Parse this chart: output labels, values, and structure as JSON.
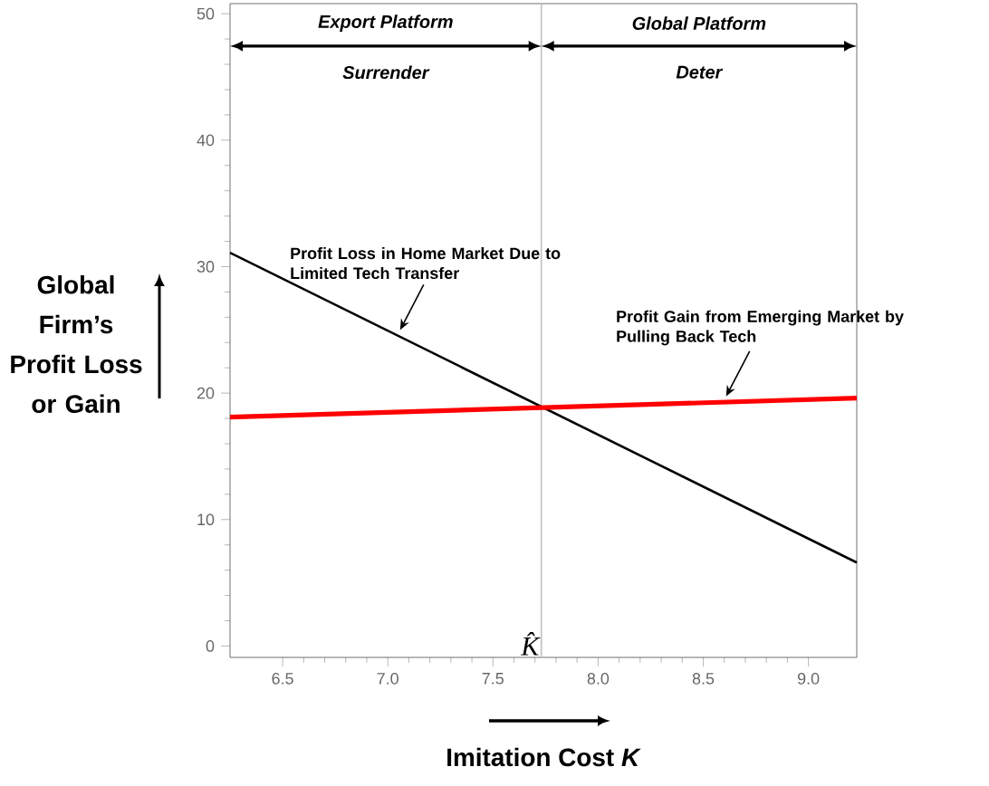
{
  "chart_data": {
    "type": "line",
    "xlabel": "Imitation Cost   *K*",
    "ylabel": "Global Firm’s Profit Loss or Gain",
    "x": [
      6.25,
      9.23
    ],
    "series": [
      {
        "color": "#000000",
        "values": [
          31.1,
          6.6
        ]
      },
      {
        "color": "#ff0000",
        "values": [
          18.1,
          19.6
        ]
      }
    ],
    "xlim": [
      6.25,
      9.23
    ],
    "ylim": [
      -0.9,
      50.8
    ],
    "xticks": [
      6.5,
      {
        "value": 7,
        "label": "7.0"
      },
      7.5,
      {
        "value": 8,
        "label": "8.0"
      },
      8.5,
      {
        "value": 9,
        "label": "9.0"
      }
    ],
    "yticks": [
      0,
      10,
      20,
      30,
      40,
      50
    ],
    "ref_lines": [
      {
        "axis": "x",
        "value": 7.73,
        "label": "K̂",
        "color": "#c0c0c0"
      }
    ],
    "annotations": [
      "Export Platform",
      "Global Platform",
      "Surrender",
      "Deter",
      {
        "text": "Profit Loss in Home Market Due to Limited Tech Transfer",
        "x": 7.05,
        "y": 24.7
      },
      {
        "text": "Profit Gain from Emerging Market by Pulling Back Tech",
        "x": 8.6,
        "y": 19.45
      }
    ]
  }
}
